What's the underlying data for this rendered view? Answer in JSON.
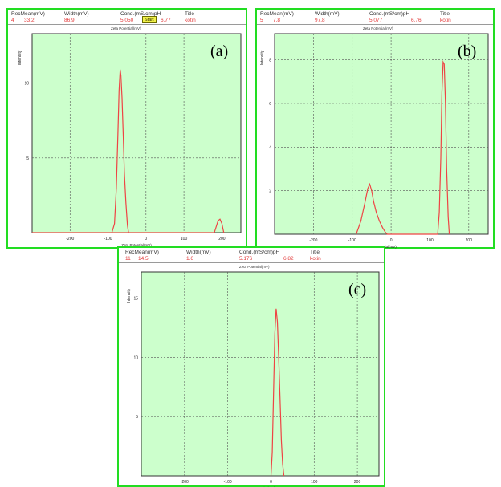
{
  "header_labels": {
    "rec_mean": "RecMean(mV)",
    "width": "Width(mV)",
    "cond_ph": "Cond.(mS/cm)pH",
    "title": "Title"
  },
  "panels": {
    "a": {
      "rec": "4",
      "mean": "33.2",
      "width": "86.9",
      "cond": "5.050",
      "ph": "6.77",
      "title": "kotin",
      "start_label": "Start",
      "tag": "(a)"
    },
    "b": {
      "rec": "5",
      "mean": "7.8",
      "width": "97.8",
      "cond": "5.077",
      "ph": "6.76",
      "title": "kotin",
      "tag": "(b)"
    },
    "c": {
      "rec": "11",
      "mean": "14.5",
      "width": "1.6",
      "cond": "5.176",
      "ph": "6.82",
      "title": "kotin",
      "tag": "(c)"
    }
  },
  "axis_text": {
    "xlabel": "Zeta Potential(mV)",
    "ylabel": "Intensity"
  },
  "colors": {
    "plot_bg": "#ccffcc",
    "curve": "#ee4444",
    "frame": "#22dd22",
    "grid": "#555555"
  },
  "chart_data": [
    {
      "type": "line",
      "panel": "a",
      "xlabel": "Zeta Potential(mV)",
      "ylabel": "Intensity",
      "xlim": [
        -300,
        250
      ],
      "ylim": [
        0,
        13.3
      ],
      "x_ticks": [
        -200,
        -100,
        0,
        100,
        200
      ],
      "y_ticks": [
        5,
        10
      ],
      "grid": true,
      "series": [
        {
          "x": [
            -90,
            -83,
            -78,
            -74,
            -71,
            -68,
            -66,
            -63,
            -60,
            -57,
            -53,
            -49,
            -46,
            -300,
            180,
            185,
            190,
            195,
            200,
            205
          ],
          "y": [
            0,
            0.6,
            3.0,
            6.5,
            9.5,
            10.9,
            10.5,
            9.0,
            6.5,
            4.0,
            2.0,
            0.5,
            0,
            0,
            0,
            0.4,
            0.8,
            0.9,
            0.6,
            0
          ]
        }
      ]
    },
    {
      "type": "line",
      "panel": "b",
      "xlabel": "Zeta Potential(mV)",
      "ylabel": "Intensity",
      "xlim": [
        -300,
        250
      ],
      "ylim": [
        0,
        9.2
      ],
      "x_ticks": [
        -200,
        -100,
        0,
        100,
        200
      ],
      "y_ticks": [
        2,
        4,
        6,
        8
      ],
      "grid": true,
      "series": [
        {
          "x": [
            -90,
            -78,
            -68,
            -60,
            -55,
            -50,
            -45,
            -38,
            -30,
            -22,
            -15,
            -10,
            120,
            124,
            128,
            131,
            134,
            137,
            140,
            143,
            147,
            150
          ],
          "y": [
            0,
            0.6,
            1.4,
            2.1,
            2.3,
            2.0,
            1.5,
            1.0,
            0.6,
            0.3,
            0.1,
            0,
            0,
            1.0,
            3.5,
            6.5,
            7.9,
            7.8,
            6.0,
            3.0,
            0.8,
            0
          ]
        }
      ]
    },
    {
      "type": "line",
      "panel": "c",
      "xlabel": "Zeta Potential(mV)",
      "ylabel": "Intensity",
      "xlim": [
        -300,
        250
      ],
      "ylim": [
        0,
        17.2
      ],
      "x_ticks": [
        -200,
        -100,
        0,
        100,
        200
      ],
      "y_ticks": [
        5,
        10,
        15
      ],
      "grid": true,
      "series": [
        {
          "x": [
            0,
            3,
            6,
            9,
            12,
            15,
            18,
            21,
            24,
            27,
            30
          ],
          "y": [
            0,
            2.0,
            7.0,
            12.0,
            14.1,
            13.0,
            10.0,
            6.5,
            3.0,
            1.0,
            0
          ]
        }
      ]
    }
  ]
}
